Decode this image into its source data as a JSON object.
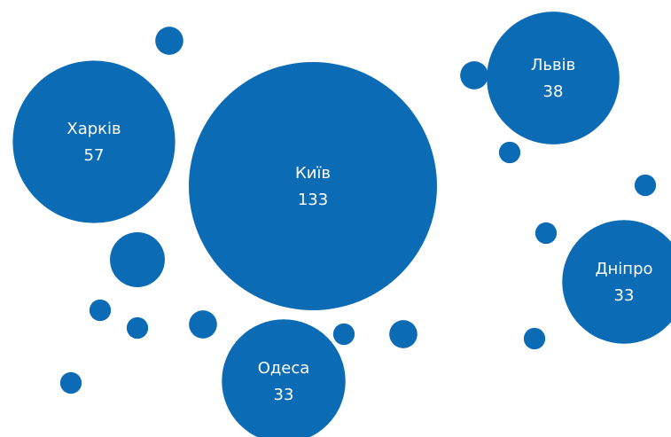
{
  "chart_data": {
    "type": "bubble",
    "color": "#0b6bb5",
    "categories": [
      "Київ",
      "Харків",
      "Львів",
      "Дніпро",
      "Одеса",
      null,
      null,
      null,
      null,
      null,
      null,
      null,
      null,
      null,
      null,
      null,
      null,
      null
    ],
    "values": [
      133,
      57,
      38,
      33,
      33,
      1.7,
      1.7,
      1,
      1,
      1,
      6.5,
      1,
      1,
      1.7,
      1,
      1.7,
      1,
      1
    ]
  }
}
